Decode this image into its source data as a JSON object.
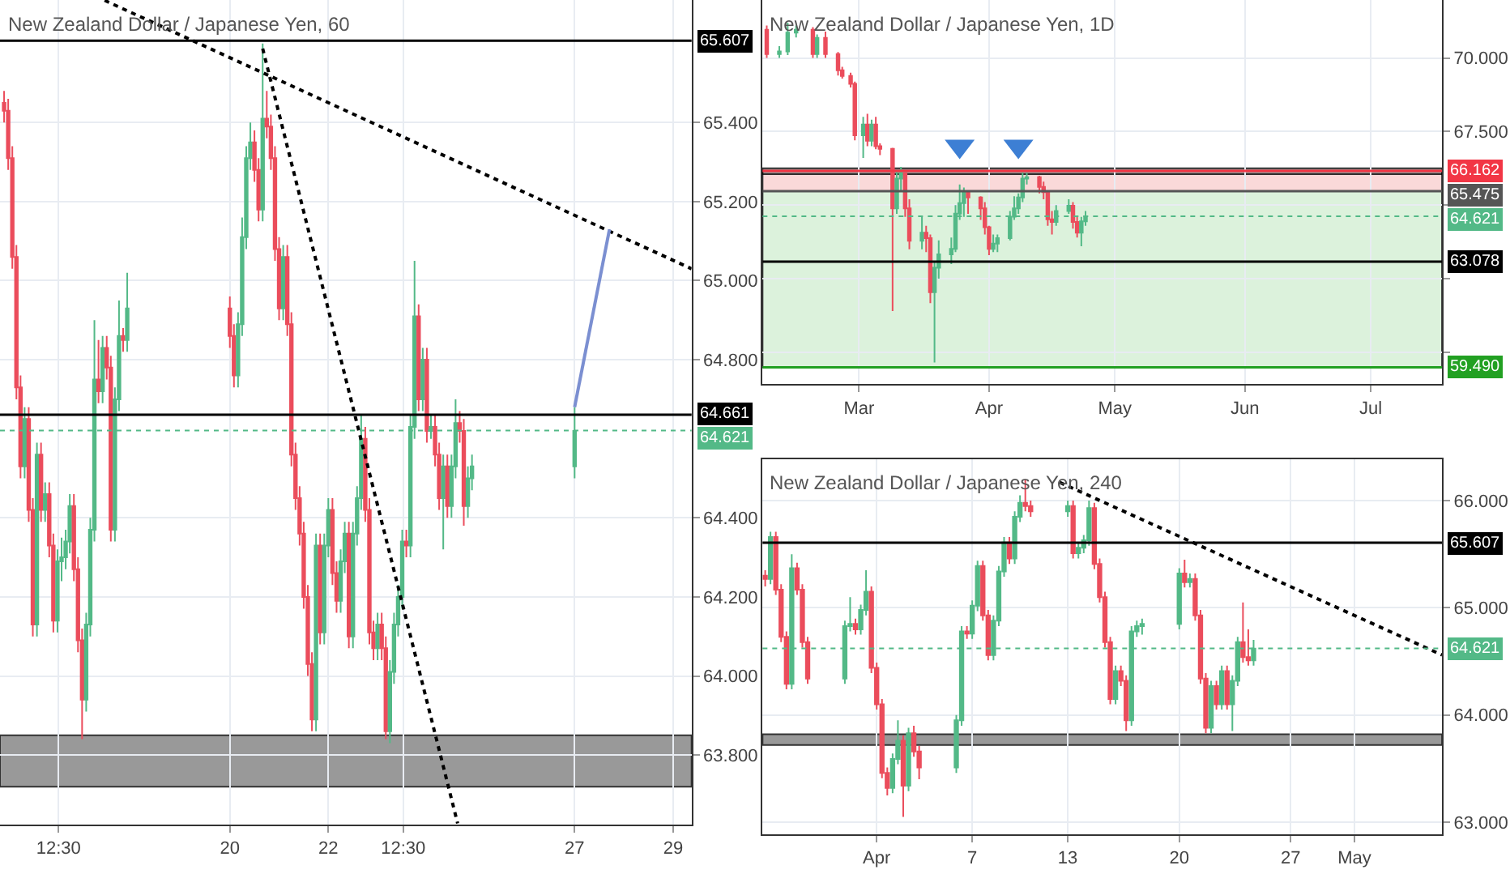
{
  "chart_data": [
    {
      "type": "candlestick",
      "title": "New Zealand Dollar / Japanese Yen, 60",
      "grid": true,
      "x": [
        "--04-15T10:00",
        "--04-15T12:00",
        "--04-15T14:00",
        "--04-15T16:00",
        "--04-15T18:00",
        "--04-15T20:00",
        "--04-15T22:00",
        "--04-16T00:00",
        "--04-16T02:00",
        "--04-16T04:00",
        "--04-16T06:00",
        "--04-16T08:00",
        "--04-16T10:00",
        "--04-16T12:00",
        "--04-16T14:00",
        "--04-16T16:00",
        "--04-16T18:00",
        "--04-16T20:00",
        "--04-16T22:00",
        "--04-17T00:00",
        "--04-17T02:00",
        "--04-17T04:00",
        "--04-17T06:00",
        "--04-17T08:00",
        "--04-17T10:00",
        "--04-17T12:00",
        "--04-17T14:00",
        "--04-17T16:00",
        "--04-17T18:00",
        "--04-17T20:00",
        "--04-17T22:00",
        "--04-20T00:00",
        "--04-20T02:00",
        "--04-20T04:00",
        "--04-20T06:00",
        "--04-20T08:00",
        "--04-20T10:00",
        "--04-20T12:00",
        "--04-20T14:00",
        "--04-20T16:00",
        "--04-20T18:00",
        "--04-20T20:00",
        "--04-20T22:00",
        "--04-21T00:00",
        "--04-21T02:00",
        "--04-21T04:00",
        "--04-21T06:00",
        "--04-21T08:00",
        "--04-21T10:00",
        "--04-21T12:00",
        "--04-21T14:00",
        "--04-21T16:00",
        "--04-21T18:00",
        "--04-21T20:00",
        "--04-21T22:00",
        "--04-22T00:00",
        "--04-22T02:00",
        "--04-22T04:00",
        "--04-22T06:00",
        "--04-22T08:00",
        "--04-22T10:00",
        "--04-22T12:00",
        "--04-22T14:00",
        "--04-22T16:00",
        "--04-22T18:00",
        "--04-22T20:00",
        "--04-22T22:00",
        "--04-23T00:00",
        "--04-23T02:00",
        "--04-23T04:00",
        "--04-23T06:00",
        "--04-23T08:00",
        "--04-23T10:00",
        "--04-23T12:00",
        "--04-23T14:00",
        "--04-23T16:00",
        "--04-23T18:00",
        "--04-23T20:00",
        "--04-23T22:00",
        "--04-24T00:00",
        "--04-24T02:00",
        "--04-24T04:00",
        "--04-24T06:00",
        "--04-24T08:00",
        "--04-24T10:00",
        "--04-24T12:00",
        "--04-24T14:00",
        "--04-24T16:00",
        "--04-24T18:00",
        "--04-24T20:00",
        "--04-24T22:00",
        "--04-27T00:00"
      ],
      "ohlc": [
        [
          65.45,
          65.48,
          65.4,
          65.43
        ],
        [
          65.43,
          65.46,
          65.28,
          65.31
        ],
        [
          65.31,
          65.34,
          65.03,
          65.06
        ],
        [
          65.06,
          65.09,
          64.7,
          64.73
        ],
        [
          64.73,
          64.76,
          64.5,
          64.53
        ],
        [
          64.53,
          64.68,
          64.5,
          64.65
        ],
        [
          64.65,
          64.68,
          64.39,
          64.42
        ],
        [
          64.42,
          64.45,
          64.1,
          64.13
        ],
        [
          64.13,
          64.59,
          64.1,
          64.56
        ],
        [
          64.56,
          64.59,
          64.39,
          64.42
        ],
        [
          64.42,
          64.49,
          64.39,
          64.46
        ],
        [
          64.46,
          64.49,
          64.3,
          64.33
        ],
        [
          64.33,
          64.36,
          64.11,
          64.14
        ],
        [
          64.14,
          64.32,
          64.11,
          64.29
        ],
        [
          64.29,
          64.35,
          64.24,
          64.3
        ],
        [
          64.3,
          64.37,
          64.27,
          64.34
        ],
        [
          64.34,
          64.46,
          64.31,
          64.43
        ],
        [
          64.43,
          64.46,
          64.24,
          64.27
        ],
        [
          64.27,
          64.3,
          64.06,
          64.09
        ],
        [
          64.09,
          64.12,
          63.84,
          63.94
        ],
        [
          63.94,
          64.16,
          63.91,
          64.13
        ],
        [
          64.13,
          64.4,
          64.1,
          64.37
        ],
        [
          64.37,
          64.9,
          64.34,
          64.75
        ],
        [
          64.75,
          64.85,
          64.69,
          64.72
        ],
        [
          64.72,
          64.86,
          64.69,
          64.83
        ],
        [
          64.83,
          64.86,
          64.75,
          64.78
        ],
        [
          64.78,
          64.81,
          64.34,
          64.37
        ],
        [
          64.37,
          64.73,
          64.34,
          64.7
        ],
        [
          64.7,
          64.95,
          64.67,
          64.86
        ],
        [
          64.86,
          64.88,
          64.82,
          64.85
        ],
        [
          64.85,
          65.02,
          64.82,
          64.93
        ],
        [
          64.93,
          64.96,
          64.83,
          64.86
        ],
        [
          64.86,
          64.89,
          64.73,
          64.76
        ],
        [
          64.76,
          64.92,
          64.73,
          64.89
        ],
        [
          64.89,
          65.16,
          64.86,
          65.11
        ],
        [
          65.11,
          65.34,
          65.08,
          65.31
        ],
        [
          65.31,
          65.4,
          65.28,
          65.35
        ],
        [
          65.35,
          65.38,
          65.25,
          65.28
        ],
        [
          65.28,
          65.31,
          65.15,
          65.18
        ],
        [
          65.18,
          65.6,
          65.15,
          65.41
        ],
        [
          65.41,
          65.48,
          65.36,
          65.39
        ],
        [
          65.39,
          65.42,
          65.28,
          65.31
        ],
        [
          65.31,
          65.34,
          65.05,
          65.08
        ],
        [
          65.08,
          65.11,
          64.9,
          64.93
        ],
        [
          64.93,
          65.09,
          64.9,
          65.06
        ],
        [
          65.06,
          65.09,
          64.86,
          64.89
        ],
        [
          64.89,
          64.92,
          64.53,
          64.56
        ],
        [
          64.56,
          64.59,
          64.42,
          64.45
        ],
        [
          64.45,
          64.48,
          64.33,
          64.36
        ],
        [
          64.36,
          64.39,
          64.17,
          64.2
        ],
        [
          64.2,
          64.23,
          64.0,
          64.03
        ],
        [
          64.03,
          64.06,
          63.86,
          63.89
        ],
        [
          63.89,
          64.36,
          63.86,
          64.33
        ],
        [
          64.33,
          64.36,
          64.08,
          64.11
        ],
        [
          64.11,
          64.36,
          64.08,
          64.33
        ],
        [
          64.33,
          64.45,
          64.3,
          64.42
        ],
        [
          64.42,
          64.45,
          64.23,
          64.26
        ],
        [
          64.26,
          64.29,
          64.16,
          64.19
        ],
        [
          64.19,
          64.32,
          64.16,
          64.29
        ],
        [
          64.29,
          64.39,
          64.26,
          64.36
        ],
        [
          64.36,
          64.39,
          64.07,
          64.1
        ],
        [
          64.1,
          64.39,
          64.07,
          64.36
        ],
        [
          64.36,
          64.48,
          64.33,
          64.45
        ],
        [
          64.45,
          64.66,
          64.42,
          64.6
        ],
        [
          64.6,
          64.63,
          64.39,
          64.42
        ],
        [
          64.42,
          64.45,
          64.08,
          64.11
        ],
        [
          64.11,
          64.14,
          64.04,
          64.07
        ],
        [
          64.07,
          64.16,
          64.04,
          64.13
        ],
        [
          64.13,
          64.16,
          64.04,
          64.07
        ],
        [
          64.07,
          64.1,
          63.84,
          63.86
        ],
        [
          63.86,
          64.04,
          63.83,
          64.01
        ],
        [
          64.01,
          64.16,
          63.98,
          64.13
        ],
        [
          64.13,
          64.23,
          64.1,
          64.2
        ],
        [
          64.2,
          64.37,
          64.17,
          64.34
        ],
        [
          64.34,
          64.37,
          64.3,
          64.33
        ],
        [
          64.33,
          64.66,
          64.3,
          64.63
        ],
        [
          64.63,
          65.05,
          64.6,
          64.91
        ],
        [
          64.91,
          64.94,
          64.67,
          64.7
        ],
        [
          64.7,
          64.83,
          64.67,
          64.8
        ],
        [
          64.8,
          64.83,
          64.59,
          64.62
        ],
        [
          64.62,
          64.66,
          64.6,
          64.63
        ],
        [
          64.63,
          64.66,
          64.53,
          64.56
        ],
        [
          64.56,
          64.59,
          64.42,
          64.45
        ],
        [
          64.45,
          64.56,
          64.32,
          64.53
        ],
        [
          64.53,
          64.56,
          64.4,
          64.43
        ],
        [
          64.43,
          64.56,
          64.4,
          64.53
        ],
        [
          64.53,
          64.7,
          64.5,
          64.64
        ],
        [
          64.64,
          64.67,
          64.59,
          64.62
        ],
        [
          64.62,
          64.65,
          64.38,
          64.43
        ],
        [
          64.43,
          64.53,
          64.4,
          64.5
        ],
        [
          64.5,
          64.56,
          64.47,
          64.53
        ],
        [
          64.53,
          64.68,
          64.5,
          64.62
        ]
      ],
      "series": [
        {
          "type": "line",
          "x": [
            "--04-17T11:00",
            "--04-29T09:00"
          ],
          "values": [
            65.709,
            65.03
          ],
          "color": "#000000",
          "line_style": "dotted"
        },
        {
          "type": "line",
          "x": [
            "--04-20T16:00",
            "--04-24T15:00"
          ],
          "values": [
            65.587,
            63.627
          ],
          "color": "#000000",
          "line_style": "dotted"
        },
        {
          "type": "line",
          "x": [
            "--04-27T00:00",
            "--04-27T17:00"
          ],
          "values": [
            64.68,
            65.13
          ],
          "color": "#7b8fd1",
          "line_style": "solid"
        }
      ],
      "xlim": [
        "--04-15T08:00",
        "--04-29T09:00"
      ],
      "xticks": [
        {
          "value": "--04-16T12:30",
          "label": "12:30"
        },
        {
          "value": "--04-20",
          "label": "20"
        },
        {
          "value": "--04-22",
          "label": "22"
        },
        {
          "value": "--04-23T12:30",
          "label": "12:30"
        },
        {
          "value": "--04-27",
          "label": "27"
        },
        {
          "value": "--04-29",
          "label": "29"
        }
      ],
      "ylim": [
        63.625,
        65.71
      ],
      "yticks": [
        {
          "value": 63.8,
          "label": "63.800"
        },
        {
          "value": 64.0,
          "label": "64.000"
        },
        {
          "value": 64.2,
          "label": "64.200"
        },
        {
          "value": 64.4,
          "label": "64.400"
        },
        {
          "value": 64.8,
          "label": "64.800"
        },
        {
          "value": 65.0,
          "label": "65.000"
        },
        {
          "value": 65.2,
          "label": "65.200"
        },
        {
          "value": 65.4,
          "label": "65.400"
        }
      ],
      "ref_lines": [
        {
          "axis": "y",
          "value": 65.607,
          "label": "65.607",
          "color": "#000000",
          "line_style": "solid"
        },
        {
          "axis": "y",
          "value": 64.661,
          "label": "64.661",
          "color": "#000000",
          "line_style": "solid"
        },
        {
          "axis": "y",
          "value": 64.621,
          "label": "64.621",
          "color": "#53b987",
          "line_style": "dotted"
        }
      ],
      "bands": [
        {
          "axis": "y",
          "from": 63.72,
          "to": 63.85,
          "color": "#808080"
        }
      ]
    },
    {
      "type": "candlestick",
      "title": "New Zealand Dollar / Japanese Yen, 1D",
      "grid": true,
      "x": [
        "--02-07",
        "--02-10",
        "--02-12",
        "--02-14",
        "--02-18",
        "--02-19",
        "--02-21",
        "--02-24",
        "--02-25",
        "--02-27",
        "--02-28",
        "--03-02",
        "--03-03",
        "--03-04",
        "--03-05",
        "--03-06",
        "--03-09",
        "--03-10",
        "--03-11",
        "--03-12",
        "--03-13",
        "--03-16",
        "--03-17",
        "--03-18",
        "--03-19",
        "--03-20",
        "--03-23",
        "--03-24",
        "--03-25",
        "--03-26",
        "--03-27",
        "--03-30",
        "--03-31",
        "--04-01",
        "--04-02",
        "--04-03",
        "--04-06",
        "--04-07",
        "--04-08",
        "--04-09",
        "--04-10",
        "--04-13",
        "--04-14",
        "--04-15",
        "--04-16",
        "--04-17",
        "--04-20",
        "--04-21",
        "--04-22",
        "--04-23",
        "--04-24"
      ],
      "ohlc": [
        [
          70.96,
          71.1,
          70.0,
          70.13
        ],
        [
          70.13,
          70.4,
          70.0,
          70.22
        ],
        [
          70.22,
          71.2,
          70.1,
          70.86
        ],
        [
          70.86,
          71.1,
          70.7,
          70.96
        ],
        [
          70.96,
          71.05,
          70.0,
          70.13
        ],
        [
          70.13,
          70.8,
          70.0,
          70.68
        ],
        [
          70.68,
          70.9,
          70.0,
          70.13
        ],
        [
          70.13,
          70.2,
          69.4,
          69.58
        ],
        [
          69.58,
          69.7,
          69.3,
          69.39
        ],
        [
          69.39,
          69.5,
          69.0,
          69.12
        ],
        [
          69.12,
          69.2,
          67.2,
          67.37
        ],
        [
          67.37,
          68.0,
          66.6,
          67.74
        ],
        [
          67.74,
          68.1,
          67.0,
          67.19
        ],
        [
          67.19,
          67.9,
          67.0,
          67.74
        ],
        [
          67.74,
          68.0,
          66.9,
          67.0
        ],
        [
          67.0,
          67.1,
          66.7,
          66.91
        ],
        [
          66.91,
          66.95,
          61.4,
          64.89
        ],
        [
          64.89,
          66.2,
          64.7,
          65.9
        ],
        [
          65.9,
          66.3,
          65.5,
          66.08
        ],
        [
          66.08,
          66.1,
          64.6,
          64.89
        ],
        [
          64.89,
          65.2,
          63.5,
          63.79
        ],
        [
          63.79,
          64.6,
          63.5,
          64.06
        ],
        [
          64.06,
          64.3,
          63.4,
          63.88
        ],
        [
          63.88,
          64.0,
          61.67,
          62.04
        ],
        [
          62.04,
          63.1,
          59.65,
          62.87
        ],
        [
          62.87,
          63.8,
          62.5,
          63.33
        ],
        [
          63.33,
          63.9,
          63.0,
          63.51
        ],
        [
          63.51,
          65.0,
          63.4,
          64.71
        ],
        [
          64.71,
          65.7,
          64.5,
          65.07
        ],
        [
          65.07,
          65.6,
          64.6,
          65.44
        ],
        [
          65.44,
          65.5,
          64.7,
          65.26
        ],
        [
          65.26,
          65.3,
          64.5,
          64.89
        ],
        [
          64.89,
          65.1,
          64.0,
          64.25
        ],
        [
          64.25,
          64.3,
          63.3,
          63.51
        ],
        [
          63.51,
          64.0,
          63.4,
          63.69
        ],
        [
          63.69,
          64.0,
          63.4,
          63.88
        ],
        [
          63.88,
          64.8,
          63.8,
          64.61
        ],
        [
          64.61,
          65.3,
          64.5,
          64.89
        ],
        [
          64.89,
          65.4,
          64.7,
          65.26
        ],
        [
          65.26,
          66.1,
          65.1,
          65.9
        ],
        [
          65.9,
          66.1,
          65.7,
          65.95
        ],
        [
          65.95,
          66.0,
          65.4,
          65.62
        ],
        [
          65.62,
          65.8,
          65.2,
          65.44
        ],
        [
          65.44,
          65.5,
          64.3,
          64.52
        ],
        [
          64.52,
          64.8,
          64.0,
          64.43
        ],
        [
          64.43,
          65.0,
          64.3,
          64.8
        ],
        [
          64.8,
          65.2,
          64.7,
          64.98
        ],
        [
          64.98,
          65.1,
          64.2,
          64.43
        ],
        [
          64.43,
          64.6,
          63.9,
          64.06
        ],
        [
          64.06,
          64.6,
          63.6,
          64.45
        ],
        [
          64.45,
          64.8,
          64.3,
          64.62
        ]
      ],
      "series": [
        {
          "type": "scatter",
          "x": [
            "--03-25",
            "--04-08"
          ],
          "values": [
            67.0,
            67.0
          ],
          "color": "#3d7fd4",
          "marker": "triangle"
        }
      ],
      "xlim": [
        "--02-06",
        "--07-18"
      ],
      "xticks": [
        {
          "value": "--03-01",
          "label": "Mar"
        },
        {
          "value": "--04-01",
          "label": "Apr"
        },
        {
          "value": "--05-01",
          "label": "May"
        },
        {
          "value": "--06-01",
          "label": "Jun"
        },
        {
          "value": "--07-01",
          "label": "Jul"
        }
      ],
      "ylim": [
        58.92,
        71.97
      ],
      "yticks": [
        {
          "value": 60,
          "label": null
        },
        {
          "value": 62.5,
          "label": null
        },
        {
          "value": 65,
          "label": null
        },
        {
          "value": 67.5,
          "label": "67.500"
        },
        {
          "value": 70,
          "label": "70.000"
        }
      ],
      "ref_lines": [
        {
          "axis": "y",
          "value": 66.162,
          "label": "66.162",
          "color": "#f23645",
          "line_style": "solid"
        },
        {
          "axis": "y",
          "value": 65.475,
          "label": "65.475",
          "color": "#555555",
          "line_style": "solid"
        },
        {
          "axis": "y",
          "value": 64.621,
          "label": "64.621",
          "color": "#53b987",
          "line_style": "dotted"
        },
        {
          "axis": "y",
          "value": 63.078,
          "label": "63.078",
          "color": "#000000",
          "line_style": "solid"
        },
        {
          "axis": "y",
          "value": 59.49,
          "label": "59.490",
          "color": "#22a022",
          "line_style": "solid"
        }
      ],
      "bands": [
        {
          "axis": "y",
          "from": 59.49,
          "to": 65.475,
          "color": "#d4efd4"
        },
        {
          "axis": "y",
          "from": 65.475,
          "to": 66.162,
          "color": "#f9d0d0"
        },
        {
          "axis": "y",
          "from": 66.05,
          "to": 66.25,
          "color": "#808080"
        }
      ]
    },
    {
      "type": "candlestick",
      "title": "New Zealand Dollar / Japanese Yen, 240",
      "grid": true,
      "x": [
        "--03-25T00:00",
        "--03-25T08:00",
        "--03-25T16:00",
        "--03-26T00:00",
        "--03-26T08:00",
        "--03-26T16:00",
        "--03-27T00:00",
        "--03-27T08:00",
        "--03-27T16:00",
        "--03-30T00:00",
        "--03-30T08:00",
        "--03-30T16:00",
        "--03-31T00:00",
        "--03-31T08:00",
        "--03-31T16:00",
        "--04-01T00:00",
        "--04-01T08:00",
        "--04-01T16:00",
        "--04-02T00:00",
        "--04-02T08:00",
        "--04-02T16:00",
        "--04-03T00:00",
        "--04-03T08:00",
        "--04-03T16:00",
        "--04-06T00:00",
        "--04-06T08:00",
        "--04-06T16:00",
        "--04-07T00:00",
        "--04-07T08:00",
        "--04-07T16:00",
        "--04-08T00:00",
        "--04-08T08:00",
        "--04-08T16:00",
        "--04-09T00:00",
        "--04-09T08:00",
        "--04-09T16:00",
        "--04-10T00:00",
        "--04-10T08:00",
        "--04-10T16:00",
        "--04-13T00:00",
        "--04-13T08:00",
        "--04-13T16:00",
        "--04-14T00:00",
        "--04-14T08:00",
        "--04-14T16:00",
        "--04-15T00:00",
        "--04-15T08:00",
        "--04-15T16:00",
        "--04-16T00:00",
        "--04-16T08:00",
        "--04-16T16:00",
        "--04-17T00:00",
        "--04-17T08:00",
        "--04-17T16:00",
        "--04-20T00:00",
        "--04-20T08:00",
        "--04-20T16:00",
        "--04-21T00:00",
        "--04-21T08:00",
        "--04-21T16:00",
        "--04-22T00:00",
        "--04-22T08:00",
        "--04-22T16:00",
        "--04-23T00:00",
        "--04-23T08:00",
        "--04-23T16:00",
        "--04-24T00:00",
        "--04-24T08:00",
        "--04-24T16:00"
      ],
      "ohlc": [
        [
          65.3,
          65.35,
          65.2,
          65.27
        ],
        [
          65.27,
          65.71,
          65.22,
          65.66
        ],
        [
          65.66,
          65.71,
          65.12,
          65.17
        ],
        [
          65.17,
          65.22,
          64.68,
          64.73
        ],
        [
          64.73,
          64.78,
          64.24,
          64.29
        ],
        [
          64.29,
          65.5,
          64.24,
          65.37
        ],
        [
          65.37,
          65.42,
          65.12,
          65.17
        ],
        [
          65.17,
          65.22,
          64.63,
          64.68
        ],
        [
          64.68,
          64.73,
          64.29,
          64.34
        ],
        [
          64.34,
          64.88,
          64.29,
          64.83
        ],
        [
          64.83,
          65.1,
          64.78,
          64.85
        ],
        [
          64.85,
          64.9,
          64.75,
          64.8
        ],
        [
          64.8,
          65.03,
          64.75,
          64.98
        ],
        [
          64.98,
          65.35,
          64.93,
          65.15
        ],
        [
          65.15,
          65.2,
          64.39,
          64.44
        ],
        [
          64.44,
          64.49,
          64.05,
          64.1
        ],
        [
          64.1,
          64.15,
          63.41,
          63.46
        ],
        [
          63.46,
          63.51,
          63.25,
          63.32
        ],
        [
          63.32,
          63.64,
          63.27,
          63.59
        ],
        [
          63.59,
          63.95,
          63.54,
          63.76
        ],
        [
          63.76,
          63.81,
          63.05,
          63.34
        ],
        [
          63.34,
          63.88,
          63.29,
          63.83
        ],
        [
          63.83,
          63.9,
          63.61,
          63.66
        ],
        [
          63.66,
          63.71,
          63.4,
          63.51
        ],
        [
          63.51,
          64.0,
          63.46,
          63.95
        ],
        [
          63.95,
          64.83,
          63.9,
          64.78
        ],
        [
          64.78,
          64.83,
          64.71,
          64.76
        ],
        [
          64.76,
          65.07,
          64.71,
          65.02
        ],
        [
          65.02,
          65.44,
          64.97,
          65.39
        ],
        [
          65.39,
          65.44,
          64.88,
          64.93
        ],
        [
          64.93,
          64.98,
          64.51,
          64.56
        ],
        [
          64.56,
          64.93,
          64.51,
          64.88
        ],
        [
          64.88,
          65.39,
          64.83,
          65.34
        ],
        [
          65.34,
          65.66,
          65.29,
          65.61
        ],
        [
          65.61,
          65.66,
          65.41,
          65.46
        ],
        [
          65.46,
          65.9,
          65.41,
          65.85
        ],
        [
          65.85,
          66.05,
          65.8,
          65.98
        ],
        [
          65.98,
          66.2,
          65.9,
          65.95
        ],
        [
          65.95,
          66.0,
          65.85,
          65.9
        ],
        [
          65.9,
          66.0,
          65.85,
          65.95
        ],
        [
          65.95,
          66.0,
          65.46,
          65.51
        ],
        [
          65.51,
          65.61,
          65.46,
          65.56
        ],
        [
          65.56,
          65.68,
          65.51,
          65.63
        ],
        [
          65.63,
          66.0,
          65.58,
          65.93
        ],
        [
          65.93,
          65.98,
          65.36,
          65.41
        ],
        [
          65.41,
          65.46,
          65.05,
          65.1
        ],
        [
          65.1,
          65.15,
          64.63,
          64.68
        ],
        [
          64.68,
          64.73,
          64.1,
          64.15
        ],
        [
          64.15,
          64.46,
          64.1,
          64.41
        ],
        [
          64.41,
          64.46,
          64.27,
          64.32
        ],
        [
          64.32,
          64.37,
          63.85,
          63.95
        ],
        [
          63.95,
          64.83,
          63.9,
          64.78
        ],
        [
          64.78,
          64.88,
          64.73,
          64.83
        ],
        [
          64.83,
          64.9,
          64.75,
          64.85
        ],
        [
          64.85,
          65.37,
          64.8,
          65.32
        ],
        [
          65.32,
          65.45,
          65.19,
          65.24
        ],
        [
          65.24,
          65.32,
          65.19,
          65.27
        ],
        [
          65.27,
          65.32,
          64.88,
          64.93
        ],
        [
          64.93,
          64.98,
          64.29,
          64.34
        ],
        [
          64.34,
          64.39,
          63.83,
          63.88
        ],
        [
          63.88,
          64.32,
          63.83,
          64.27
        ],
        [
          64.27,
          64.32,
          64.05,
          64.1
        ],
        [
          64.1,
          64.46,
          64.05,
          64.41
        ],
        [
          64.41,
          64.46,
          64.05,
          64.1
        ],
        [
          64.1,
          64.37,
          63.85,
          64.32
        ],
        [
          64.32,
          64.73,
          64.27,
          64.68
        ],
        [
          64.68,
          65.05,
          64.49,
          64.54
        ],
        [
          64.54,
          64.8,
          64.46,
          64.51
        ],
        [
          64.51,
          64.7,
          64.46,
          64.62
        ]
      ],
      "series": [
        {
          "type": "line",
          "x": [
            "--04-12T12:00",
            "--05-06T12:00"
          ],
          "values": [
            66.17,
            64.56
          ],
          "color": "#000000",
          "line_style": "dotted"
        }
      ],
      "xlim": [
        "--03-24T20:00",
        "--05-06T12:00"
      ],
      "xticks": [
        {
          "value": "--04-01",
          "label": "Apr"
        },
        {
          "value": "--04-07",
          "label": "7"
        },
        {
          "value": "--04-13",
          "label": "13"
        },
        {
          "value": "--04-20",
          "label": "20"
        },
        {
          "value": "--04-27",
          "label": "27"
        },
        {
          "value": "--05-01",
          "label": "May"
        }
      ],
      "ylim": [
        62.89,
        66.39
      ],
      "yticks": [
        {
          "value": 63,
          "label": "63.000"
        },
        {
          "value": 64,
          "label": "64.000"
        },
        {
          "value": 65,
          "label": "65.000"
        },
        {
          "value": 66,
          "label": "66.000"
        }
      ],
      "ref_lines": [
        {
          "axis": "y",
          "value": 65.607,
          "label": "65.607",
          "color": "#000000",
          "line_style": "solid"
        },
        {
          "axis": "y",
          "value": 64.621,
          "label": "64.621",
          "color": "#53b987",
          "line_style": "dotted"
        }
      ],
      "bands": [
        {
          "axis": "y",
          "from": 63.72,
          "to": 63.82,
          "color": "#808080"
        }
      ]
    }
  ]
}
